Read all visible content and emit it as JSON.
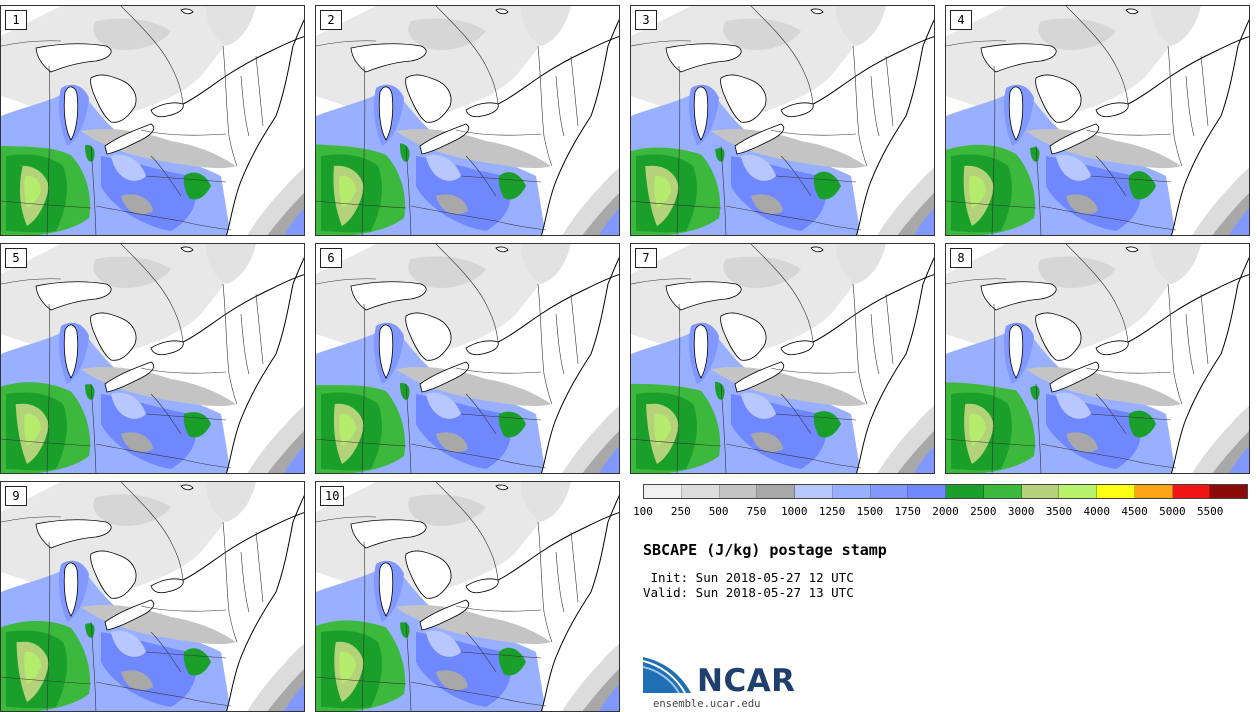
{
  "panels": [
    {
      "label": "1",
      "variant": 0
    },
    {
      "label": "2",
      "variant": 1
    },
    {
      "label": "3",
      "variant": 2
    },
    {
      "label": "4",
      "variant": 3
    },
    {
      "label": "5",
      "variant": 4
    },
    {
      "label": "6",
      "variant": 5
    },
    {
      "label": "7",
      "variant": 6
    },
    {
      "label": "8",
      "variant": 7
    },
    {
      "label": "9",
      "variant": 8
    },
    {
      "label": "10",
      "variant": 9
    }
  ],
  "colorbar": {
    "colors": [
      "#f0f0f0",
      "#dcdcdc",
      "#c4c4c4",
      "#a8a8a8",
      "#b8c8ff",
      "#98b0ff",
      "#8098ff",
      "#7088ff",
      "#1aa02a",
      "#3cb83c",
      "#b4d27a",
      "#b6f26a",
      "#ffff14",
      "#ffa514",
      "#f01414",
      "#8c0a0a"
    ],
    "tick_labels": [
      "100",
      "250",
      "500",
      "750",
      "1000",
      "1250",
      "1500",
      "1750",
      "2000",
      "2500",
      "3000",
      "3500",
      "4000",
      "4500",
      "5000",
      "5500"
    ]
  },
  "title": "SBCAPE (J/kg) postage stamp",
  "init_line": " Init: Sun 2018-05-27 12 UTC",
  "valid_line": "Valid: Sun 2018-05-27 13 UTC",
  "logo": {
    "text": "NCAR",
    "url": "ensemble.ucar.edu"
  }
}
